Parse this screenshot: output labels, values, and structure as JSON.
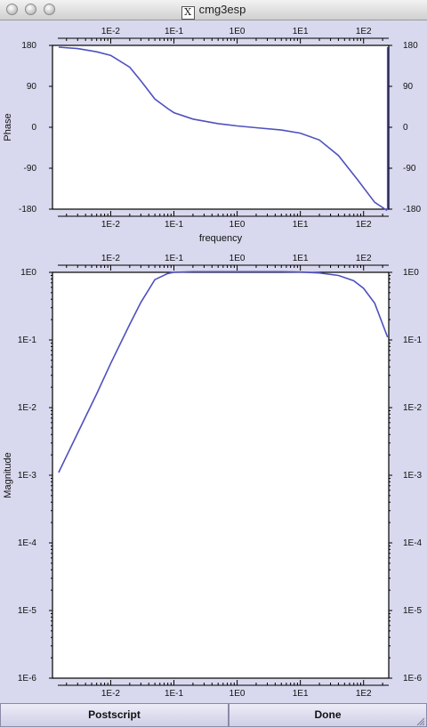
{
  "window": {
    "title": "cmg3esp"
  },
  "icons": {
    "title_icon": "x11-icon",
    "resize": "resize-grip-icon"
  },
  "colors": {
    "curve": "#5050c0",
    "background": "#d8d8ee",
    "plot_bg": "#ffffff"
  },
  "buttons": {
    "postscript": "Postscript",
    "done": "Done"
  },
  "chart_data": [
    {
      "type": "line",
      "ylabel": "Phase",
      "xlabel": "frequency",
      "x_scale": "log",
      "xlim": [
        0.0012,
        250
      ],
      "ylim": [
        -180,
        180
      ],
      "x_tick_labels": [
        "1E-2",
        "1E-1",
        "1E0",
        "1E1",
        "1E2"
      ],
      "y_tick_labels": [
        "180",
        "90",
        "0",
        "-90",
        "-180"
      ],
      "series": [
        {
          "x": [
            0.0015,
            0.003,
            0.006,
            0.01,
            0.02,
            0.03,
            0.05,
            0.08,
            0.1,
            0.2,
            0.5,
            1,
            2,
            5,
            10,
            20,
            40,
            80,
            150,
            230,
            240,
            240
          ],
          "values": [
            176,
            173,
            166,
            158,
            132,
            102,
            62,
            41,
            32,
            18,
            8,
            3,
            -1,
            -6,
            -13,
            -28,
            -62,
            -115,
            -165,
            -182,
            -178,
            176
          ]
        }
      ]
    },
    {
      "type": "line",
      "ylabel": "Magnitude",
      "x_scale": "log",
      "y_scale": "log",
      "xlim": [
        0.0012,
        250
      ],
      "ylim": [
        1e-06,
        1
      ],
      "x_tick_labels": [
        "1E-2",
        "1E-1",
        "1E0",
        "1E1",
        "1E2"
      ],
      "y_tick_labels": [
        "1E0",
        "1E-1",
        "1E-2",
        "1E-3",
        "1E-4",
        "1E-5",
        "1E-6"
      ],
      "series": [
        {
          "x": [
            0.0015,
            0.003,
            0.006,
            0.01,
            0.02,
            0.03,
            0.05,
            0.08,
            0.1,
            0.2,
            0.5,
            1,
            2,
            5,
            10,
            20,
            40,
            70,
            100,
            150,
            240
          ],
          "values": [
            0.0011,
            0.0042,
            0.016,
            0.045,
            0.17,
            0.36,
            0.78,
            0.96,
            1.0,
            1.02,
            1.02,
            1.02,
            1.02,
            1.02,
            1.01,
            0.98,
            0.9,
            0.75,
            0.58,
            0.35,
            0.11
          ]
        }
      ]
    }
  ]
}
